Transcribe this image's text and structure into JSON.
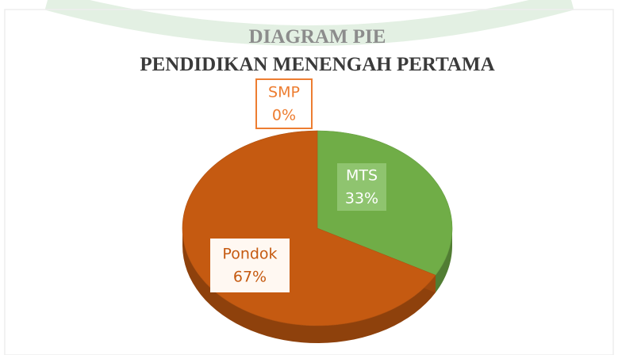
{
  "chart_data": {
    "type": "pie",
    "title": "DIAGRAM PIE",
    "subtitle": "PENDIDIKAN MENENGAH PERTAMA",
    "categories": [
      "SMP",
      "MTS",
      "Pondok"
    ],
    "values": [
      0,
      33,
      67
    ],
    "value_labels": [
      "0%",
      "33%",
      "67%"
    ],
    "colors": [
      "#ed7d31",
      "#70ad47",
      "#c55a11"
    ]
  }
}
